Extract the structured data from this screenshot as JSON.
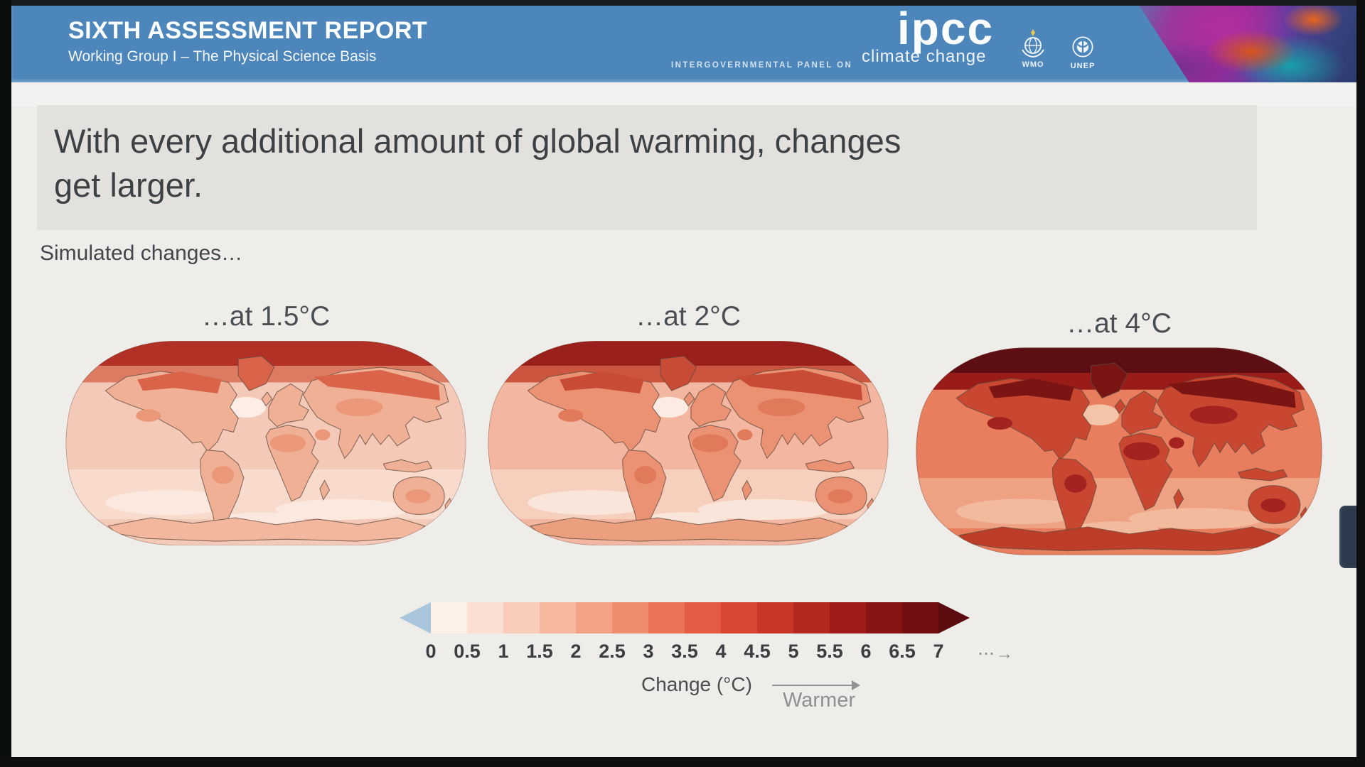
{
  "header": {
    "title": "SIXTH ASSESSMENT REPORT",
    "subtitle": "Working Group I – The Physical Science Basis",
    "ipcc_logo": "ipcc",
    "ipcc_small_caps": "INTERGOVERNMENTAL PANEL ON",
    "ipcc_lower": "climate change",
    "bg_color": "#4d86ba",
    "org_logos": [
      {
        "label": "WMO"
      },
      {
        "label": "UNEP"
      }
    ]
  },
  "slide": {
    "title_line1": "With every additional amount of global warming, changes",
    "title_line2": "get larger.",
    "lead": "Simulated changes…"
  },
  "chart_data": {
    "type": "heatmap",
    "title": "Simulated changes…",
    "description": "Three Robinson-projection world maps of simulated annual mean surface temperature change at increasing global warming levels; warming is strongest over land and the Arctic and intensifies from 1.5°C to 4°C.",
    "maps": [
      {
        "label": "…at 1.5°C",
        "warming_level_c": 1.5,
        "palette": {
          "arctic": "#b23126",
          "arctic2": "#dd7a62",
          "ocean": "#f5c9b8",
          "oceanSouth": "#f8dbcd",
          "oceanPale": "#fbe9e0",
          "atlantic": "#fceee7",
          "land": "#f0b096",
          "landHot": "#ea9879",
          "landNorth": "#d96449",
          "antarctic": "#f2b79d"
        }
      },
      {
        "label": "…at 2°C",
        "warming_level_c": 2,
        "palette": {
          "arctic": "#9a201c",
          "arctic2": "#cc5540",
          "ocean": "#f3b6a0",
          "oceanSouth": "#f7d0bd",
          "oceanPale": "#fae5da",
          "atlantic": "#fbebe2",
          "land": "#eb9274",
          "landHot": "#e17a5a",
          "landNorth": "#c84b35",
          "antarctic": "#ec9f7f"
        }
      },
      {
        "label": "…at 4°C",
        "warming_level_c": 4,
        "palette": {
          "arctic": "#5d0e12",
          "arctic2": "#991c18",
          "ocean": "#e87e5e",
          "oceanSouth": "#efa183",
          "oceanPale": "#f3bb9e",
          "atlantic": "#f4c4a8",
          "land": "#c94730",
          "landHot": "#a32320",
          "landNorth": "#7a1513",
          "antarctic": "#bc3e28"
        }
      }
    ],
    "colorbar": {
      "ticks": [
        "0",
        "0.5",
        "1",
        "1.5",
        "2",
        "2.5",
        "3",
        "3.5",
        "4",
        "4.5",
        "5",
        "5.5",
        "6",
        "6.5",
        "7"
      ],
      "overflow_symbol": "⋯→",
      "segment_colors": [
        "#fdf0e9",
        "#fbdfd2",
        "#f8ccb8",
        "#f6b89f",
        "#f3a287",
        "#ef8b6e",
        "#ea7357",
        "#e25b42",
        "#d74734",
        "#c83627",
        "#b4271e",
        "#9e1b17",
        "#871313",
        "#700e11"
      ],
      "below_zero_color": "#a9c6dc",
      "above_max_color": "#5c0b0f",
      "xlabel": "Change (°C)",
      "direction_label": "Warmer",
      "unit": "°C",
      "range": [
        0,
        7
      ]
    }
  }
}
